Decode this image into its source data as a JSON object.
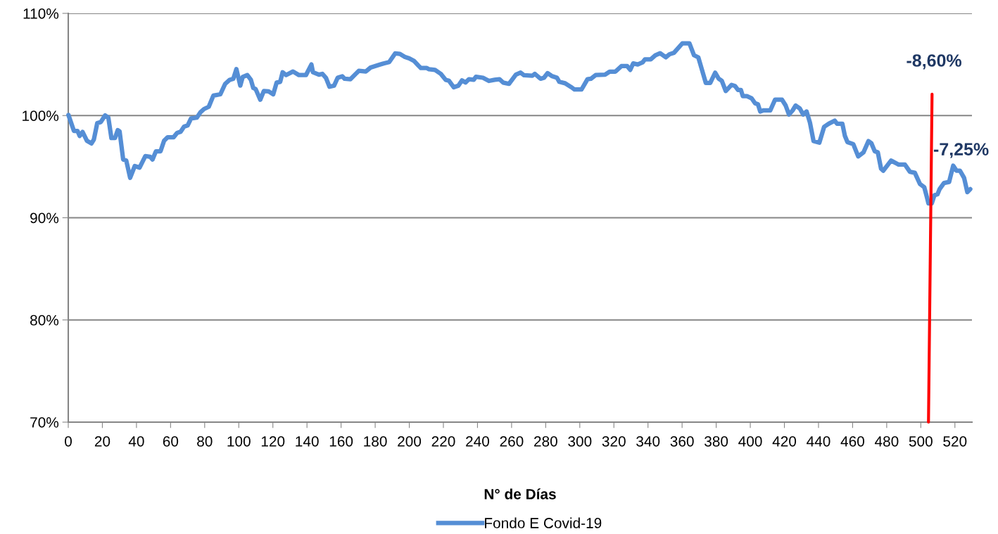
{
  "chart_data": {
    "type": "line",
    "xlabel": "N° de Días",
    "series": [
      {
        "name": "Fondo E Covid-19",
        "color": "#558ed5",
        "x": [
          0.1,
          3.3,
          5.4,
          6.7,
          8.4,
          10.9,
          13.6,
          15,
          17,
          19.1,
          21.6,
          23.5,
          25.3,
          27.4,
          29,
          30.1,
          32.2,
          34,
          36.3,
          39,
          41.8,
          45.2,
          48,
          49.4,
          51.4,
          54.1,
          56.2,
          58.3,
          61.8,
          63.8,
          65.9,
          67.9,
          70,
          72,
          75.4,
          77.6,
          79.6,
          82.4,
          85.1,
          89.2,
          92,
          94.7,
          96.8,
          98.6,
          100.9,
          102.3,
          105,
          107.1,
          108.5,
          109.9,
          112.6,
          114.7,
          117.5,
          120.2,
          122.2,
          124.3,
          125.7,
          127.7,
          131.8,
          135.3,
          139.4,
          142.6,
          143.5,
          147,
          149,
          151.1,
          153.2,
          155.9,
          158,
          160.7,
          162.1,
          165.5,
          170.4,
          174.5,
          177.3,
          182.8,
          184.9,
          188.2,
          191.7,
          194.5,
          197.2,
          200,
          202.7,
          205.4,
          206.8,
          210.3,
          211.6,
          215.1,
          218.5,
          221.3,
          223.3,
          226.1,
          228.8,
          230.9,
          233,
          235,
          237.8,
          239.1,
          243.2,
          246.7,
          250.1,
          252.9,
          255,
          258.5,
          262.5,
          265.3,
          267.3,
          272.2,
          273.6,
          277,
          279,
          281.1,
          283.8,
          286.6,
          288,
          291.4,
          294.8,
          296.9,
          301,
          304.5,
          306.5,
          309.3,
          314.8,
          317.5,
          320.9,
          324.4,
          327.8,
          329.6,
          331.3,
          334,
          336.8,
          338.2,
          341.6,
          344.3,
          347.1,
          350.5,
          352.6,
          355.3,
          360.1,
          364.3,
          367,
          369.5,
          373.9,
          376.5,
          379.4,
          381.5,
          383.3,
          385.6,
          389,
          391,
          392.8,
          394.5,
          395.6,
          398,
          400.7,
          402.8,
          404.5,
          405.8,
          407.5,
          411.7,
          414.5,
          418.6,
          420.7,
          422.7,
          424.8,
          426.6,
          429,
          431,
          433,
          435,
          437.1,
          440.5,
          443.3,
          446,
          449.5,
          450.9,
          454,
          455.5,
          457,
          460.4,
          463.3,
          466.4,
          469.3,
          471,
          473,
          474.8,
          476.7,
          478,
          480.3,
          482.6,
          487,
          490.7,
          493.6,
          496.5,
          499.5,
          502,
          503.6,
          504.5,
          506.4,
          508,
          509.8,
          511,
          513.6,
          516.6,
          519,
          521,
          523,
          525.4,
          527.3,
          529
        ],
        "values": [
          100.06,
          98.5,
          98.5,
          98.0,
          98.4,
          97.54,
          97.27,
          97.65,
          99.26,
          99.37,
          100.02,
          99.8,
          97.8,
          97.8,
          98.57,
          98.46,
          95.7,
          95.6,
          93.91,
          95.06,
          94.9,
          96.04,
          95.97,
          95.7,
          96.5,
          96.5,
          97.54,
          97.88,
          97.88,
          98.3,
          98.42,
          98.92,
          99.03,
          99.72,
          99.8,
          100.34,
          100.64,
          100.86,
          101.95,
          102.08,
          103.1,
          103.5,
          103.6,
          104.54,
          102.93,
          103.78,
          103.96,
          103.5,
          102.7,
          102.59,
          101.55,
          102.4,
          102.36,
          102.08,
          103.23,
          103.3,
          104.24,
          103.96,
          104.31,
          103.96,
          103.96,
          105.0,
          104.24,
          104.0,
          104.08,
          103.7,
          102.82,
          102.93,
          103.7,
          103.84,
          103.6,
          103.56,
          104.38,
          104.31,
          104.7,
          104.99,
          105.1,
          105.23,
          106.08,
          106.04,
          105.75,
          105.6,
          105.36,
          104.88,
          104.65,
          104.65,
          104.53,
          104.46,
          104.08,
          103.5,
          103.4,
          102.77,
          102.93,
          103.44,
          103.24,
          103.56,
          103.5,
          103.8,
          103.7,
          103.39,
          103.5,
          103.56,
          103.23,
          103.1,
          104.0,
          104.2,
          103.95,
          103.9,
          104.08,
          103.6,
          103.7,
          104.15,
          103.85,
          103.7,
          103.3,
          103.16,
          102.8,
          102.55,
          102.55,
          103.55,
          103.6,
          103.96,
          104.0,
          104.3,
          104.3,
          104.84,
          104.84,
          104.47,
          105.1,
          105.0,
          105.2,
          105.5,
          105.5,
          105.9,
          106.1,
          105.7,
          106.0,
          106.15,
          107.06,
          107.06,
          105.9,
          105.7,
          103.2,
          103.2,
          104.2,
          103.6,
          103.4,
          102.4,
          103.0,
          102.9,
          102.5,
          102.5,
          101.9,
          101.9,
          101.7,
          101.2,
          101.1,
          100.4,
          100.5,
          100.5,
          101.55,
          101.55,
          101.0,
          100.1,
          100.5,
          100.98,
          100.7,
          100.1,
          100.4,
          99.3,
          97.5,
          97.35,
          98.9,
          99.2,
          99.5,
          99.2,
          99.2,
          98.0,
          97.4,
          97.2,
          96.0,
          96.4,
          97.5,
          97.3,
          96.5,
          96.4,
          94.8,
          94.6,
          95.1,
          95.6,
          95.2,
          95.2,
          94.5,
          94.4,
          93.3,
          93.0,
          92.0,
          91.4,
          91.4,
          92.2,
          92.3,
          92.8,
          93.4,
          93.5,
          95.1,
          94.6,
          94.6,
          93.9,
          92.5,
          92.8
        ]
      },
      {
        "color": "#ff0000",
        "x": [
          504.5,
          506.6
        ],
        "values": [
          70,
          102.1
        ]
      }
    ],
    "annotations": [
      "-8,60%",
      "-7,25%"
    ],
    "xlim": [
      0,
      530
    ],
    "xticks": [
      0,
      20,
      40,
      60,
      80,
      100,
      120,
      140,
      160,
      180,
      200,
      220,
      240,
      260,
      280,
      300,
      320,
      340,
      360,
      380,
      400,
      420,
      440,
      460,
      480,
      500,
      520
    ],
    "ylim": [
      70,
      110
    ],
    "yticks": [
      {
        "value": 70,
        "label": "70%"
      },
      {
        "value": 80,
        "label": "80%"
      },
      {
        "value": 90,
        "label": "90%"
      },
      {
        "value": 100,
        "label": "100%"
      },
      {
        "value": 110,
        "label": "110%"
      }
    ],
    "grid": "y",
    "legend": "bottom",
    "marker": "none",
    "line_style": "solid"
  }
}
